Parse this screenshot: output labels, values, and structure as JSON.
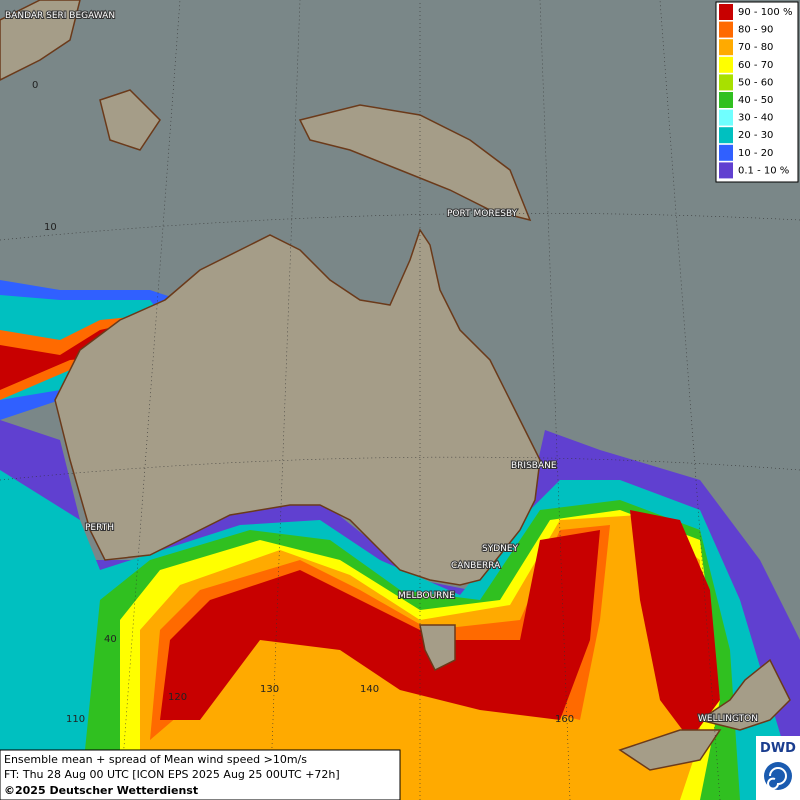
{
  "legend": [
    {
      "label": "90 - 100 %",
      "color": "#c80000"
    },
    {
      "label": "80 - 90",
      "color": "#ff6a00"
    },
    {
      "label": "70 - 80",
      "color": "#ffaa00"
    },
    {
      "label": "60 - 70",
      "color": "#ffff00"
    },
    {
      "label": "50 - 60",
      "color": "#a8e000"
    },
    {
      "label": "40 - 50",
      "color": "#30c020"
    },
    {
      "label": "30 - 40",
      "color": "#70ffff"
    },
    {
      "label": "20 - 30",
      "color": "#00c0c0"
    },
    {
      "label": "10 - 20",
      "color": "#3060ff"
    },
    {
      "label": "0.1 - 10 %",
      "color": "#6040d0"
    }
  ],
  "cities": [
    "BANDAR SERI BEGAWAN",
    "PORT MORESBY",
    "BRISBANE",
    "PERTH",
    "SYDNEY",
    "CANBERRA",
    "MELBOURNE",
    "WELLINGTON"
  ],
  "grid_labels": [
    "0",
    "10",
    "40",
    "110",
    "120",
    "130",
    "140",
    "160"
  ],
  "caption": [
    "Ensemble mean + spread of Mean wind speed >10m/s",
    "FT: Thu 28 Aug 00 UTC [ICON EPS 2025 Aug 25 00UTC +72h]",
    "©2025 Deutscher Wetterdienst"
  ],
  "logo": "DWD"
}
